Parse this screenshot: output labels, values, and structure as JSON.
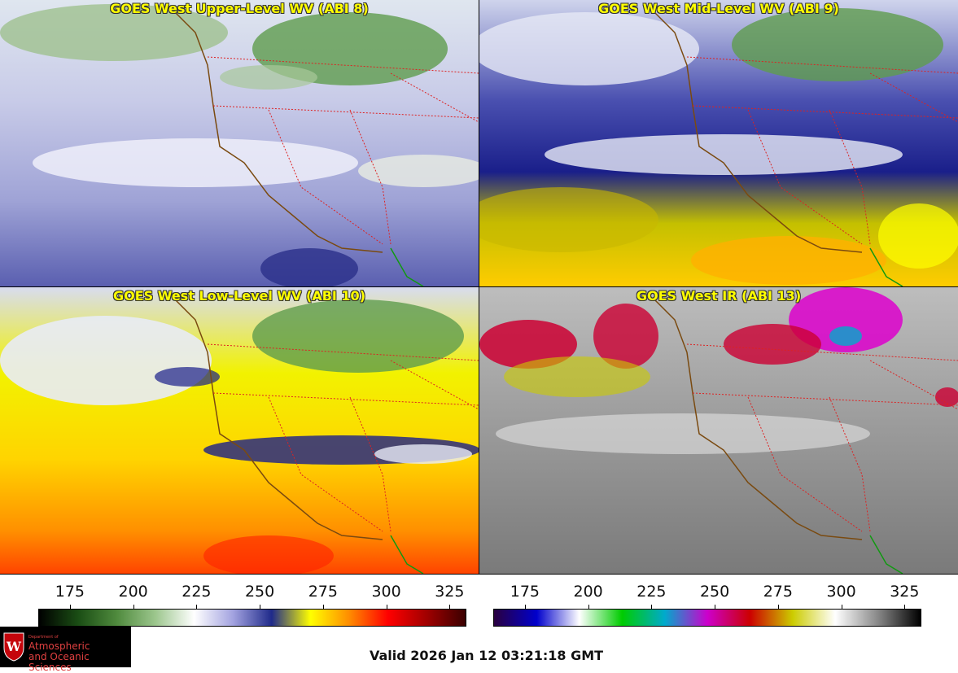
{
  "panels": [
    {
      "title": "GOES West Upper-Level WV (ABI 8)"
    },
    {
      "title": "GOES West Mid-Level WV (ABI 9)"
    },
    {
      "title": "GOES West Low-Level WV (ABI 10)"
    },
    {
      "title": "GOES West IR (ABI 13)"
    }
  ],
  "colorbars": {
    "wv_ticks": [
      "175",
      "200",
      "225",
      "250",
      "275",
      "300",
      "325"
    ],
    "ir_ticks": [
      "175",
      "200",
      "225",
      "250",
      "275",
      "300",
      "325"
    ],
    "wv_colors": [
      "#000000",
      "#1a4d14",
      "#4f8a3d",
      "#9cc68d",
      "#ffffff",
      "#a3a3e0",
      "#1f2a8a",
      "#ffff00",
      "#ff8c00",
      "#ff0000",
      "#a00000",
      "#3a0000"
    ],
    "ir_colors": [
      "#2a0040",
      "#0000cc",
      "#ffffff",
      "#00cc00",
      "#00aacc",
      "#cc00cc",
      "#cc0000",
      "#cccc00",
      "#ffffff",
      "#888888",
      "#000000"
    ]
  },
  "logo": {
    "dept": "Department of",
    "line1": "Atmospheric",
    "line2": "and Oceanic Sciences"
  },
  "valid_text": "Valid 2026 Jan 12 03:21:18 GMT",
  "colors": {
    "coast": "#7a4a10",
    "state_border": "#dd2222",
    "mexico_coast": "#119911"
  }
}
